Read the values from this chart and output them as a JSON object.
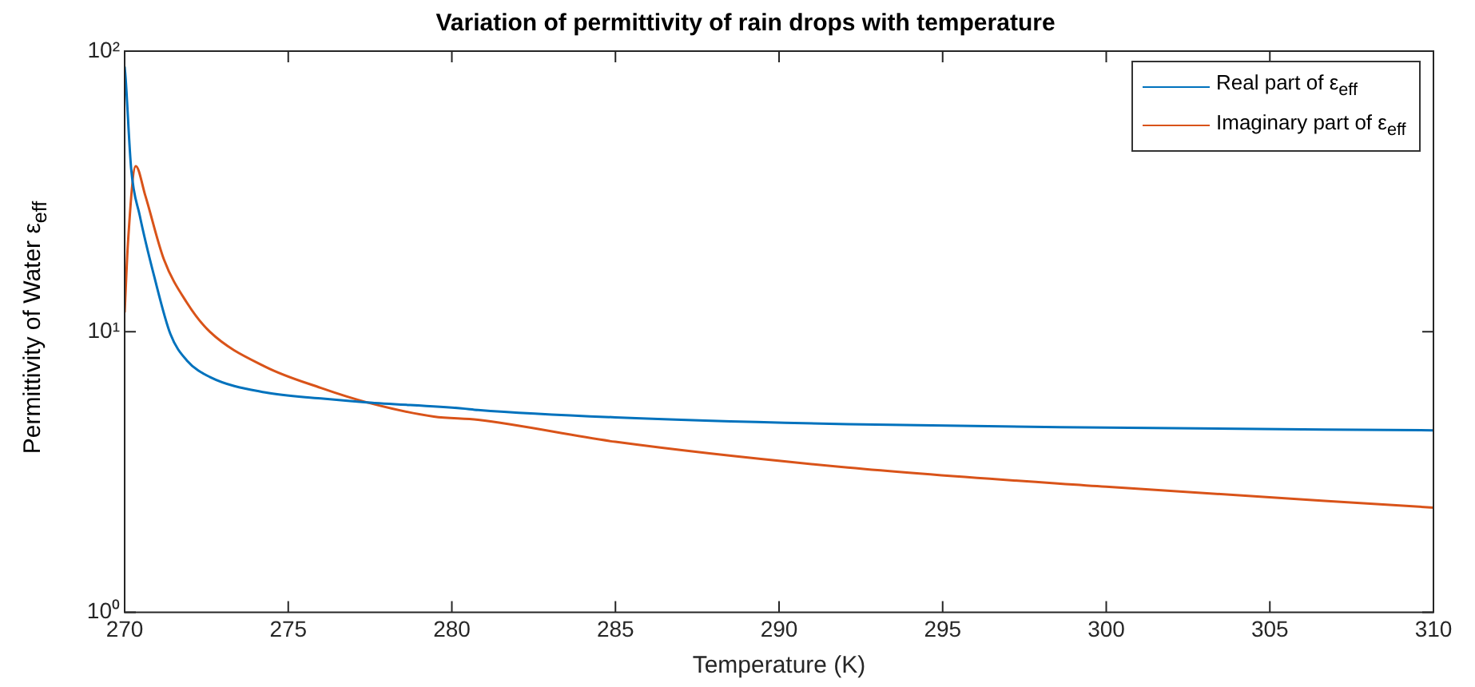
{
  "chart_data": {
    "type": "line",
    "title": "Variation of permittivity of rain drops with temperature",
    "xlabel": "Temperature (K)",
    "ylabel": "Permittivity of Water ε$_{eff}$",
    "series": [
      {
        "name": "Real part of ε$_{eff}$",
        "color": "#0072bd",
        "x": [
          270,
          270.03,
          270.2,
          270.46,
          270.9,
          271.4,
          271.9,
          272.6,
          274.3,
          276,
          277.4,
          280.3,
          280.8,
          285,
          292.1,
          300,
          310
        ],
        "values": [
          88,
          80,
          38,
          26,
          15.8,
          9.8,
          7.9,
          6.9,
          6.07,
          5.78,
          5.6,
          5.33,
          5.26,
          4.95,
          4.68,
          4.55,
          4.45
        ]
      },
      {
        "name": "Imaginary part of ε$_{eff}$",
        "color": "#d95319",
        "x": [
          270,
          270.1,
          270.34,
          270.63,
          271.2,
          271.9,
          272.6,
          274.3,
          276,
          277.4,
          279.45,
          280.8,
          285,
          292.1,
          300,
          310
        ],
        "values": [
          11.7,
          20.6,
          38.9,
          30.6,
          18.1,
          12.7,
          10,
          7.5,
          6.3,
          5.6,
          4.98,
          4.85,
          4.05,
          3.28,
          2.8,
          2.36
        ]
      }
    ],
    "xlim": [
      270,
      310
    ],
    "xticks": [
      270,
      275,
      280,
      285,
      290,
      295,
      300,
      305,
      310
    ],
    "ylim": [
      1,
      100
    ],
    "yticks": [
      {
        "value": 1,
        "label": "10⁰"
      },
      {
        "value": 10,
        "label": "10¹"
      },
      {
        "value": 100,
        "label": "10²"
      }
    ],
    "log": "y",
    "grid": false,
    "legend": "top right"
  }
}
